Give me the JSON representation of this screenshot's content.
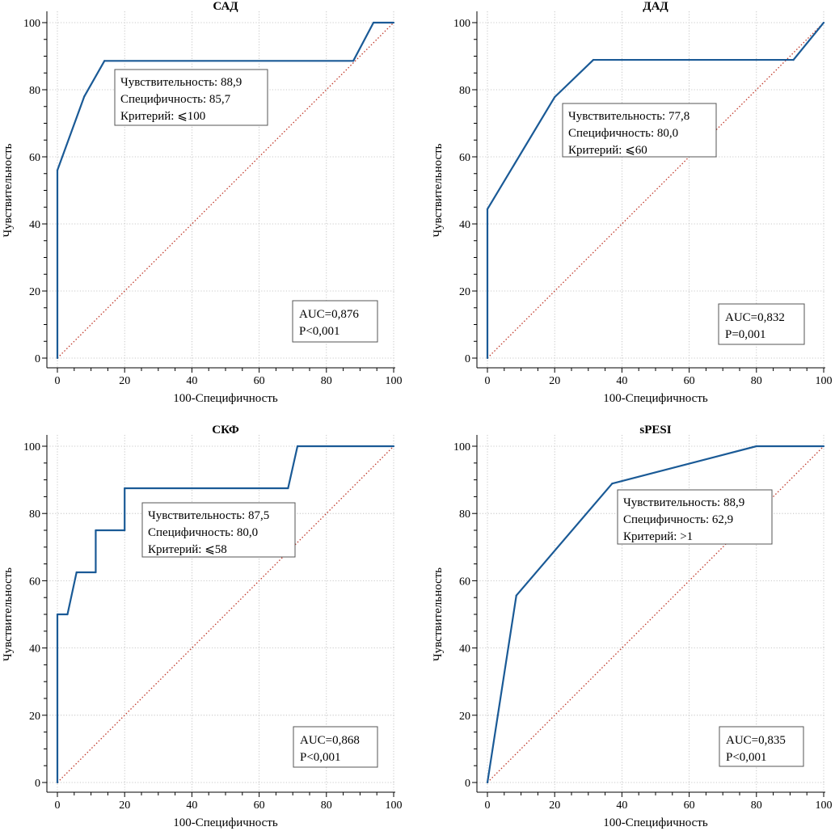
{
  "chart_data": [
    {
      "type": "line",
      "title": "САД",
      "xlabel": "100-Специфичность",
      "ylabel": "Чувствительность",
      "xlim": [
        0,
        100
      ],
      "ylim": [
        0,
        100
      ],
      "xticks": [
        0,
        20,
        40,
        60,
        80,
        100
      ],
      "yticks": [
        0,
        20,
        40,
        60,
        80,
        100
      ],
      "grid": true,
      "series": [
        {
          "x": [
            0,
            0,
            8,
            14,
            88,
            94,
            100
          ],
          "y": [
            0,
            56,
            78,
            88.6,
            88.6,
            100,
            100
          ],
          "color": "#1a5a96"
        }
      ],
      "reference_line": {
        "x": [
          0,
          100
        ],
        "y": [
          0,
          100
        ],
        "color": "#c0392b",
        "style": "dotted"
      },
      "annotations": {
        "stats": [
          "Чувствительность: 88,9",
          "Специфичность: 85,7",
          "Критерий: ⩽100"
        ],
        "auc": [
          "AUC=0,876",
          "P<0,001"
        ]
      }
    },
    {
      "type": "line",
      "title": "ДАД",
      "xlabel": "100-Специфичность",
      "ylabel": "Чувствительность",
      "xlim": [
        0,
        100
      ],
      "ylim": [
        0,
        100
      ],
      "xticks": [
        0,
        20,
        40,
        60,
        80,
        100
      ],
      "yticks": [
        0,
        20,
        40,
        60,
        80,
        100
      ],
      "grid": true,
      "series": [
        {
          "x": [
            0,
            0,
            20,
            31.5,
            91,
            100
          ],
          "y": [
            0,
            44.4,
            77.8,
            88.9,
            88.9,
            100
          ],
          "color": "#1a5a96"
        }
      ],
      "reference_line": {
        "x": [
          0,
          100
        ],
        "y": [
          0,
          100
        ],
        "color": "#c0392b",
        "style": "dotted"
      },
      "annotations": {
        "stats": [
          "Чувствительность: 77,8",
          "Специфичность: 80,0",
          "Критерий: ⩽60"
        ],
        "auc": [
          "AUC=0,832",
          "P=0,001"
        ]
      }
    },
    {
      "type": "line",
      "title": "СКФ",
      "xlabel": "100-Специфичность",
      "ylabel": "Чувствительность",
      "xlim": [
        0,
        100
      ],
      "ylim": [
        0,
        100
      ],
      "xticks": [
        0,
        20,
        40,
        60,
        80,
        100
      ],
      "yticks": [
        0,
        20,
        40,
        60,
        80,
        100
      ],
      "grid": true,
      "series": [
        {
          "x": [
            0,
            0,
            3,
            5.7,
            11.4,
            11.4,
            20,
            20,
            68.6,
            71.4,
            100
          ],
          "y": [
            0,
            50,
            50,
            62.5,
            62.5,
            75,
            75,
            87.5,
            87.5,
            100,
            100
          ],
          "color": "#1a5a96"
        }
      ],
      "reference_line": {
        "x": [
          0,
          100
        ],
        "y": [
          0,
          100
        ],
        "color": "#c0392b",
        "style": "dotted"
      },
      "annotations": {
        "stats": [
          "Чувствительность: 87,5",
          "Специфичность: 80,0",
          "Критерий: ⩽58"
        ],
        "auc": [
          "AUC=0,868",
          "P<0,001"
        ]
      }
    },
    {
      "type": "line",
      "title": "sPESI",
      "xlabel": "100-Специфичность",
      "ylabel": "Чувствительность",
      "xlim": [
        0,
        100
      ],
      "ylim": [
        0,
        100
      ],
      "xticks": [
        0,
        20,
        40,
        60,
        80,
        100
      ],
      "yticks": [
        0,
        20,
        40,
        60,
        80,
        100
      ],
      "grid": true,
      "series": [
        {
          "x": [
            0,
            8.6,
            37.1,
            80,
            100
          ],
          "y": [
            0,
            55.6,
            88.9,
            100,
            100
          ],
          "color": "#1a5a96"
        }
      ],
      "reference_line": {
        "x": [
          0,
          100
        ],
        "y": [
          0,
          100
        ],
        "color": "#c0392b",
        "style": "dotted"
      },
      "annotations": {
        "stats": [
          "Чувствительность: 88,9",
          "Специфичность: 62,9",
          "Критерий: >1"
        ],
        "auc": [
          "AUC=0,835",
          "P<0,001"
        ]
      }
    }
  ]
}
